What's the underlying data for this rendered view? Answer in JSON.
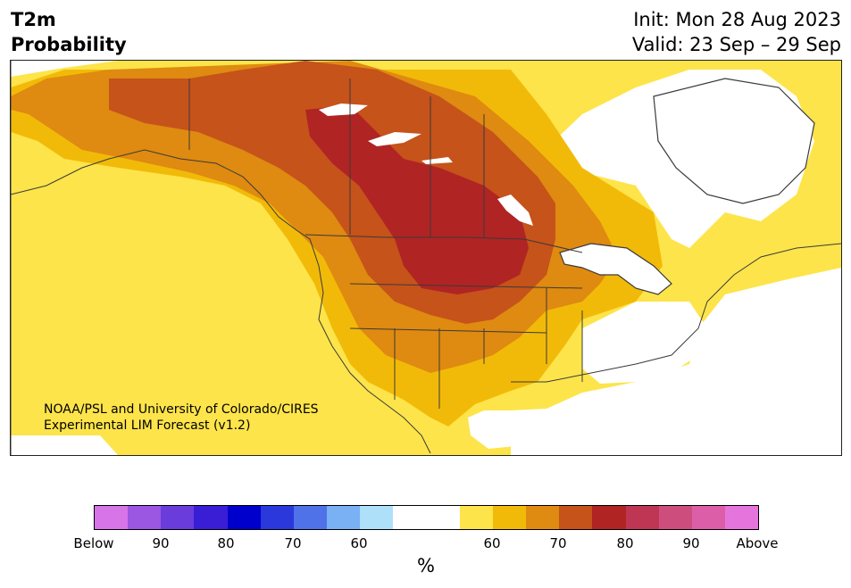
{
  "header": {
    "variable": "T2m",
    "kind": "Probability",
    "init": "Init: Mon 28 Aug 2023",
    "valid": "Valid: 23 Sep – 29 Sep"
  },
  "credit": {
    "line1": "NOAA/PSL and University of Colorado/CIRES",
    "line2": "Experimental LIM Forecast (v1.2)"
  },
  "colorbar": {
    "colors": [
      "#d674e8",
      "#9b56e2",
      "#6a3cdc",
      "#3a1ed6",
      "#0000cc",
      "#2a38dc",
      "#4f72e8",
      "#7ab0f4",
      "#aee0fa",
      "#ffffff",
      "#ffffff",
      "#fde44a",
      "#f2ba08",
      "#df8a10",
      "#c5531a",
      "#b02424",
      "#bf3654",
      "#cd4e7c",
      "#dc5ea8",
      "#e674dd"
    ],
    "tick_labels": [
      "Below",
      "90",
      "80",
      "70",
      "60",
      "60",
      "70",
      "80",
      "90",
      "Above"
    ],
    "unit": "%"
  },
  "legend_colors": {
    "p60": "#fde44a",
    "p70": "#f2ba08",
    "p75": "#df8a10",
    "p80": "#c5531a",
    "p90": "#b02424",
    "lakes": "#ffffff",
    "borders": "#3a3a3a"
  }
}
